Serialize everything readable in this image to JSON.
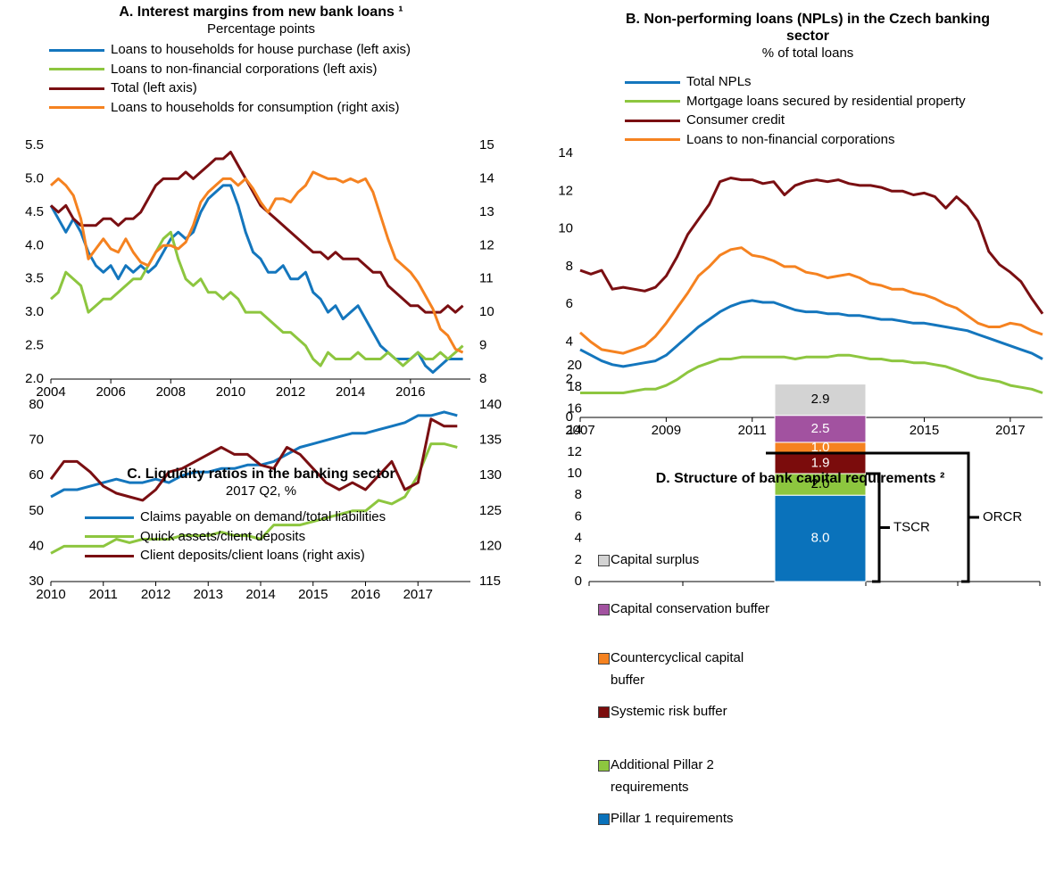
{
  "chart_data": [
    {
      "type": "line",
      "title": "A. Interest margins from new bank loans ¹",
      "subtitle": "Percentage points",
      "x": [
        2004,
        2004.25,
        2004.5,
        2004.75,
        2005,
        2005.25,
        2005.5,
        2005.75,
        2006,
        2006.25,
        2006.5,
        2006.75,
        2007,
        2007.25,
        2007.5,
        2007.75,
        2008,
        2008.25,
        2008.5,
        2008.75,
        2009,
        2009.25,
        2009.5,
        2009.75,
        2010,
        2010.25,
        2010.5,
        2010.75,
        2011,
        2011.25,
        2011.5,
        2011.75,
        2012,
        2012.25,
        2012.5,
        2012.75,
        2013,
        2013.25,
        2013.5,
        2013.75,
        2014,
        2014.25,
        2014.5,
        2014.75,
        2015,
        2015.25,
        2015.5,
        2015.75,
        2016,
        2016.25,
        2016.5,
        2016.75,
        2017,
        2017.25,
        2017.5,
        2017.75
      ],
      "xlim": [
        2004,
        2018
      ],
      "xticks": [
        2004,
        2006,
        2008,
        2010,
        2012,
        2014,
        2016
      ],
      "ylim": [
        2,
        5.5
      ],
      "yticks": [
        {
          "value": 2,
          "label": "2.0"
        },
        2.5,
        {
          "value": 3,
          "label": "3.0"
        },
        3.5,
        {
          "value": 4,
          "label": "4.0"
        },
        4.5,
        {
          "value": 5,
          "label": "5.0"
        },
        5.5
      ],
      "y2lim": [
        8,
        15
      ],
      "y2ticks": [
        8,
        9,
        10,
        11,
        12,
        13,
        14,
        15
      ],
      "series": [
        {
          "name": "Loans to households for house purchase (left axis)",
          "color": "#1476bd",
          "values": [
            4.6,
            4.4,
            4.2,
            4.4,
            4.2,
            3.9,
            3.7,
            3.6,
            3.7,
            3.5,
            3.7,
            3.6,
            3.7,
            3.6,
            3.7,
            3.9,
            4.1,
            4.2,
            4.1,
            4.2,
            4.5,
            4.7,
            4.8,
            4.9,
            4.9,
            4.6,
            4.2,
            3.9,
            3.8,
            3.6,
            3.6,
            3.7,
            3.5,
            3.5,
            3.6,
            3.3,
            3.2,
            3.0,
            3.1,
            2.9,
            3.0,
            3.1,
            2.9,
            2.7,
            2.5,
            2.4,
            2.3,
            2.3,
            2.3,
            2.4,
            2.2,
            2.1,
            2.2,
            2.3,
            2.3,
            2.3
          ]
        },
        {
          "name": "Loans to non-financial corporations (left axis)",
          "color": "#8dc63f",
          "values": [
            3.2,
            3.3,
            3.6,
            3.5,
            3.4,
            3.0,
            3.1,
            3.2,
            3.2,
            3.3,
            3.4,
            3.5,
            3.5,
            3.7,
            3.9,
            4.1,
            4.2,
            3.8,
            3.5,
            3.4,
            3.5,
            3.3,
            3.3,
            3.2,
            3.3,
            3.2,
            3.0,
            3.0,
            3.0,
            2.9,
            2.8,
            2.7,
            2.7,
            2.6,
            2.5,
            2.3,
            2.2,
            2.4,
            2.3,
            2.3,
            2.3,
            2.4,
            2.3,
            2.3,
            2.3,
            2.4,
            2.3,
            2.2,
            2.3,
            2.4,
            2.3,
            2.3,
            2.4,
            2.3,
            2.4,
            2.5
          ]
        },
        {
          "name": "Total (left axis)",
          "color": "#7a0f12",
          "values": [
            4.6,
            4.5,
            4.6,
            4.4,
            4.3,
            4.3,
            4.3,
            4.4,
            4.4,
            4.3,
            4.4,
            4.4,
            4.5,
            4.7,
            4.9,
            5.0,
            5.0,
            5.0,
            5.1,
            5.0,
            5.1,
            5.2,
            5.3,
            5.3,
            5.4,
            5.2,
            5.0,
            4.8,
            4.6,
            4.5,
            4.4,
            4.3,
            4.2,
            4.1,
            4.0,
            3.9,
            3.9,
            3.8,
            3.9,
            3.8,
            3.8,
            3.8,
            3.7,
            3.6,
            3.6,
            3.4,
            3.3,
            3.2,
            3.1,
            3.1,
            3.0,
            3.0,
            3.0,
            3.1,
            3.0,
            3.1
          ]
        },
        {
          "name": "Loans to households for consumption (right axis)",
          "color": "#f58220",
          "axis": "y2",
          "values": [
            13.8,
            14.0,
            13.8,
            13.5,
            12.8,
            11.6,
            11.9,
            12.2,
            11.9,
            11.8,
            12.2,
            11.8,
            11.5,
            11.4,
            11.8,
            12.0,
            12.0,
            11.9,
            12.1,
            12.6,
            13.3,
            13.6,
            13.8,
            14.0,
            14.0,
            13.8,
            14.0,
            13.7,
            13.3,
            13.0,
            13.4,
            13.4,
            13.3,
            13.6,
            13.8,
            14.2,
            14.1,
            14.0,
            14.0,
            13.9,
            14.0,
            13.9,
            14.0,
            13.6,
            12.9,
            12.2,
            11.6,
            11.4,
            11.2,
            10.9,
            10.5,
            10.1,
            9.5,
            9.3,
            8.9,
            8.8
          ]
        }
      ]
    },
    {
      "type": "line",
      "title": "B. Non-performing loans (NPLs) in the Czech banking sector",
      "subtitle": "% of total loans",
      "x": [
        2007,
        2007.25,
        2007.5,
        2007.75,
        2008,
        2008.25,
        2008.5,
        2008.75,
        2009,
        2009.25,
        2009.5,
        2009.75,
        2010,
        2010.25,
        2010.5,
        2010.75,
        2011,
        2011.25,
        2011.5,
        2011.75,
        2012,
        2012.25,
        2012.5,
        2012.75,
        2013,
        2013.25,
        2013.5,
        2013.75,
        2014,
        2014.25,
        2014.5,
        2014.75,
        2015,
        2015.25,
        2015.5,
        2015.75,
        2016,
        2016.25,
        2016.5,
        2016.75,
        2017,
        2017.25,
        2017.5,
        2017.75
      ],
      "xlim": [
        2007,
        2017.75
      ],
      "xticks": [
        2007,
        2009,
        2011,
        2013,
        2015,
        2017
      ],
      "ylim": [
        0,
        14
      ],
      "yticks": [
        0,
        2,
        4,
        6,
        8,
        10,
        12,
        14
      ],
      "series": [
        {
          "name": "Total NPLs",
          "color": "#1476bd",
          "values": [
            3.6,
            3.3,
            3.0,
            2.8,
            2.7,
            2.8,
            2.9,
            3.0,
            3.3,
            3.8,
            4.3,
            4.8,
            5.2,
            5.6,
            5.9,
            6.1,
            6.2,
            6.1,
            6.1,
            5.9,
            5.7,
            5.6,
            5.6,
            5.5,
            5.5,
            5.4,
            5.4,
            5.3,
            5.2,
            5.2,
            5.1,
            5.0,
            5.0,
            4.9,
            4.8,
            4.7,
            4.6,
            4.4,
            4.2,
            4.0,
            3.8,
            3.6,
            3.4,
            3.1
          ]
        },
        {
          "name": "Mortgage loans secured by residential property",
          "color": "#8dc63f",
          "values": [
            1.3,
            1.3,
            1.3,
            1.3,
            1.3,
            1.4,
            1.5,
            1.5,
            1.7,
            2.0,
            2.4,
            2.7,
            2.9,
            3.1,
            3.1,
            3.2,
            3.2,
            3.2,
            3.2,
            3.2,
            3.1,
            3.2,
            3.2,
            3.2,
            3.3,
            3.3,
            3.2,
            3.1,
            3.1,
            3.0,
            3.0,
            2.9,
            2.9,
            2.8,
            2.7,
            2.5,
            2.3,
            2.1,
            2.0,
            1.9,
            1.7,
            1.6,
            1.5,
            1.3
          ]
        },
        {
          "name": "Consumer credit",
          "color": "#7a0f12",
          "values": [
            7.8,
            7.6,
            7.8,
            6.8,
            6.9,
            6.8,
            6.7,
            6.9,
            7.5,
            8.5,
            9.7,
            10.5,
            11.3,
            12.5,
            12.7,
            12.6,
            12.6,
            12.4,
            12.5,
            11.8,
            12.3,
            12.5,
            12.6,
            12.5,
            12.6,
            12.4,
            12.3,
            12.3,
            12.2,
            12.0,
            12.0,
            11.8,
            11.9,
            11.7,
            11.1,
            11.7,
            11.2,
            10.4,
            8.8,
            8.1,
            7.7,
            7.2,
            6.3,
            5.5
          ]
        },
        {
          "name": "Loans to non-financial corporations",
          "color": "#f58220",
          "values": [
            4.5,
            4.0,
            3.6,
            3.5,
            3.4,
            3.6,
            3.8,
            4.3,
            5.0,
            5.8,
            6.6,
            7.5,
            8.0,
            8.6,
            8.9,
            9.0,
            8.6,
            8.5,
            8.3,
            8.0,
            8.0,
            7.7,
            7.6,
            7.4,
            7.5,
            7.6,
            7.4,
            7.1,
            7.0,
            6.8,
            6.8,
            6.6,
            6.5,
            6.3,
            6.0,
            5.8,
            5.4,
            5.0,
            4.8,
            4.8,
            5.0,
            4.9,
            4.6,
            4.4
          ]
        }
      ]
    },
    {
      "type": "line",
      "title": "C. Liquidity ratios in the banking sector",
      "subtitle": "2017 Q2, %",
      "x": [
        2010,
        2010.25,
        2010.5,
        2010.75,
        2011,
        2011.25,
        2011.5,
        2011.75,
        2012,
        2012.25,
        2012.5,
        2012.75,
        2013,
        2013.25,
        2013.5,
        2013.75,
        2014,
        2014.25,
        2014.5,
        2014.75,
        2015,
        2015.25,
        2015.5,
        2015.75,
        2016,
        2016.25,
        2016.5,
        2016.75,
        2017,
        2017.25,
        2017.5,
        2017.75
      ],
      "xlim": [
        2010,
        2018
      ],
      "xticks": [
        2010,
        2011,
        2012,
        2013,
        2014,
        2015,
        2016,
        2017
      ],
      "ylim": [
        30,
        80
      ],
      "yticks": [
        30,
        40,
        50,
        60,
        70,
        80
      ],
      "y2lim": [
        115,
        140
      ],
      "y2ticks": [
        115,
        120,
        125,
        130,
        135,
        140
      ],
      "series": [
        {
          "name": "Claims payable on demand/total liabilities",
          "color": "#1476bd",
          "values": [
            54,
            56,
            56,
            57,
            58,
            59,
            58,
            58,
            59,
            58,
            60,
            61,
            61,
            62,
            62,
            63,
            63,
            64,
            66,
            68,
            69,
            70,
            71,
            72,
            72,
            73,
            74,
            75,
            77,
            77,
            78,
            77
          ]
        },
        {
          "name": "Quick assets/client deposits",
          "color": "#8dc63f",
          "values": [
            38,
            40,
            40,
            40,
            40,
            42,
            41,
            42,
            42,
            42,
            43,
            43,
            43,
            44,
            43,
            43,
            42,
            46,
            46,
            46,
            47,
            48,
            49,
            50,
            50,
            53,
            52,
            54,
            60,
            69,
            69,
            68
          ]
        },
        {
          "name": "Client deposits/client loans (right axis)",
          "color": "#7a0f12",
          "axis": "y2",
          "values": [
            129.5,
            132,
            132,
            130.5,
            128.5,
            127.5,
            127,
            126.5,
            128,
            130.5,
            131,
            132,
            133,
            134,
            133,
            133,
            131.5,
            131,
            134,
            133,
            131,
            129,
            128,
            129,
            128,
            130,
            132,
            128,
            129,
            138,
            137,
            137
          ]
        }
      ]
    },
    {
      "type": "stacked_bar",
      "title": "D. Structure of bank capital requirements ²",
      "categories": [
        null
      ],
      "ylim": [
        0,
        20
      ],
      "yticks": [
        0,
        2,
        4,
        6,
        8,
        10,
        12,
        14,
        16,
        18,
        20
      ],
      "annotations": [
        "TSCR",
        "ORCR"
      ],
      "series": [
        {
          "name": "Pillar 1 requirements",
          "color": "#0a72bb",
          "values": [
            8.0
          ],
          "value_labels": [
            "8.0"
          ]
        },
        {
          "name": "Additional Pillar 2 requirements",
          "color": "#8dc63f",
          "values": [
            2.0
          ],
          "value_labels": [
            "2.0"
          ]
        },
        {
          "name": "Systemic risk buffer",
          "color": "#7b0c0c",
          "values": [
            1.9
          ],
          "value_labels": [
            "1.9"
          ]
        },
        {
          "name": "Countercyclical capital buffer",
          "color": "#f58220",
          "values": [
            1.0
          ],
          "value_labels": [
            "1.0"
          ]
        },
        {
          "name": "Capital conservation buffer",
          "color": "#a252a0",
          "values": [
            2.5
          ],
          "value_labels": [
            "2.5"
          ]
        },
        {
          "name": "Capital surplus",
          "color": "#d3d3d3",
          "values": [
            2.9
          ],
          "value_labels": [
            "2.9"
          ]
        }
      ]
    }
  ]
}
